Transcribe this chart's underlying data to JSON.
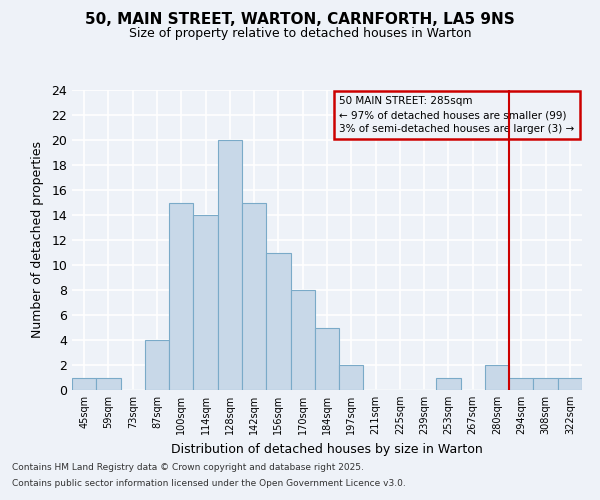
{
  "title1": "50, MAIN STREET, WARTON, CARNFORTH, LA5 9NS",
  "title2": "Size of property relative to detached houses in Warton",
  "xlabel": "Distribution of detached houses by size in Warton",
  "ylabel": "Number of detached properties",
  "categories": [
    "45sqm",
    "59sqm",
    "73sqm",
    "87sqm",
    "100sqm",
    "114sqm",
    "128sqm",
    "142sqm",
    "156sqm",
    "170sqm",
    "184sqm",
    "197sqm",
    "211sqm",
    "225sqm",
    "239sqm",
    "253sqm",
    "267sqm",
    "280sqm",
    "294sqm",
    "308sqm",
    "322sqm"
  ],
  "values": [
    1,
    1,
    0,
    4,
    15,
    14,
    20,
    15,
    11,
    8,
    5,
    2,
    0,
    0,
    0,
    1,
    0,
    2,
    1,
    1,
    1
  ],
  "bar_color": "#c8d8e8",
  "bar_edgecolor": "#7aaac8",
  "background_color": "#eef2f8",
  "grid_color": "#ffffff",
  "vline_x": 17.5,
  "vline_color": "#cc0000",
  "annotation_text": "50 MAIN STREET: 285sqm\n← 97% of detached houses are smaller (99)\n3% of semi-detached houses are larger (3) →",
  "annotation_box_color": "#cc0000",
  "ylim": [
    0,
    24
  ],
  "yticks": [
    0,
    2,
    4,
    6,
    8,
    10,
    12,
    14,
    16,
    18,
    20,
    22,
    24
  ],
  "footnote1": "Contains HM Land Registry data © Crown copyright and database right 2025.",
  "footnote2": "Contains public sector information licensed under the Open Government Licence v3.0."
}
